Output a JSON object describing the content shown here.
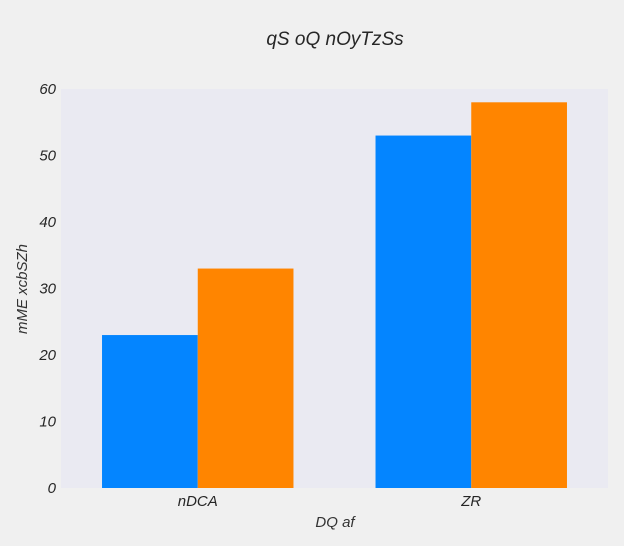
{
  "chart_data": {
    "type": "bar",
    "title": "qS oQ  nOyTzSs",
    "xlabel": "DQ af",
    "ylabel": "mME xcbSZh",
    "categories": [
      "nDCA",
      "ZR"
    ],
    "series": [
      {
        "values": [
          23,
          53
        ]
      },
      {
        "values": [
          33,
          58
        ]
      }
    ],
    "ylim": [
      0,
      60
    ],
    "yticks": [
      "0",
      "10",
      "20",
      "30",
      "40",
      "50",
      "60"
    ],
    "grid": false,
    "colors": {
      "plot_background": "#eaeaf2",
      "series": [
        "#0485ff",
        "#ff8500"
      ]
    }
  }
}
